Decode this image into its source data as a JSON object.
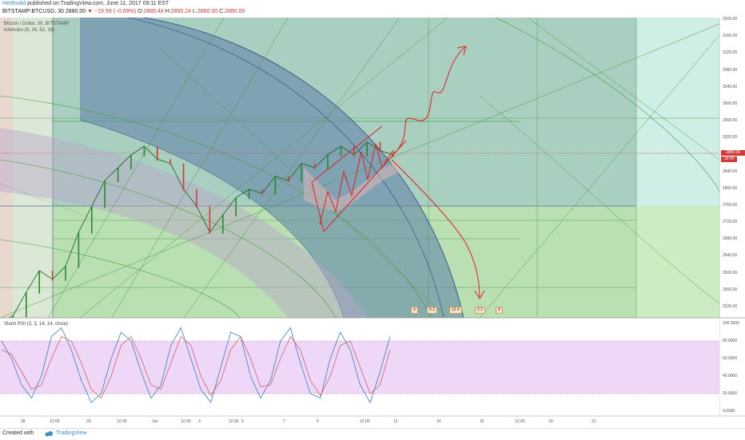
{
  "header": {
    "author": "Heithvald",
    "published_text": "published on TradingView.com, June 11, 2017 09:11 EST",
    "symbol": "BITSTAMP:BTCUSD, 30",
    "last": "2880.00",
    "change": "▼ −19.99 (−0.69%)",
    "open_label": "O:",
    "open": "2889.48",
    "high_label": "H:",
    "high": "2895.24",
    "low_label": "L:",
    "low": "2880.00",
    "close_label": "C:",
    "close": "2880.00"
  },
  "legend": {
    "series_title": "Bitcoin / Dollar, 30, BITSTAMP",
    "ichimoku": "Ichimoku (9, 26, 52, 26)",
    "stoch": "Stoch RSI (3, 3, 14, 14, close)"
  },
  "price_tag": {
    "value": "2880.00",
    "timer": "19:04"
  },
  "badges": [
    "4",
    "0 2",
    "12 4",
    "0 2",
    "4"
  ],
  "footer": {
    "created_with": "Created with",
    "brand": "TradingView"
  },
  "colors": {
    "up": "#2a8a2a",
    "down": "#d23a3a",
    "stoch_k": "#3a7cc0",
    "stoch_d": "#d06060",
    "stoch_band": "#e8c6f5",
    "fib_arc_fill": "#5d7fa8",
    "green_zone": "#b6e0b0",
    "arrow": "#e02020"
  },
  "chart_data": [
    {
      "type": "line",
      "name": "price",
      "title": "",
      "y_ticks": [
        "3200.00",
        "3160.00",
        "3120.00",
        "3080.00",
        "3040.00",
        "3000.00",
        "2960.00",
        "2920.00",
        "2880.00",
        "2840.00",
        "2800.00",
        "2760.00",
        "2720.00",
        "2680.00",
        "2640.00",
        "2600.00",
        "2560.00",
        "2520.00"
      ],
      "ylim": [
        2500,
        3200
      ],
      "x_ticks": [
        "28",
        "12:00",
        "29",
        "12:00",
        "Jun",
        "12:00",
        "3",
        "12:00",
        "5",
        "7",
        "9",
        "12:00",
        "12",
        "14",
        "16",
        "12:00",
        "19",
        "21"
      ],
      "series": [
        {
          "values": [
            2490,
            2505,
            2560,
            2610,
            2590,
            2620,
            2700,
            2760,
            2820,
            2850,
            2880,
            2900,
            2870,
            2860,
            2800,
            2760,
            2700,
            2740,
            2780,
            2800,
            2790,
            2830,
            2820,
            2860,
            2850,
            2880,
            2900,
            2880,
            2910,
            2890,
            2880
          ]
        }
      ]
    },
    {
      "type": "line",
      "name": "stoch_rsi",
      "title": "",
      "y_ticks": [
        "100.0000",
        "80.0000",
        "60.0000",
        "40.0000",
        "20.0000",
        "0.0000"
      ],
      "ylim": [
        0,
        100
      ],
      "band": [
        20,
        80
      ],
      "series": [
        {
          "values": [
            80,
            60,
            30,
            15,
            40,
            85,
            95,
            70,
            35,
            10,
            20,
            60,
            90,
            80,
            45,
            15,
            30,
            75,
            95,
            60,
            25,
            10,
            50,
            90,
            85,
            40,
            15,
            35,
            80,
            95,
            55,
            20,
            15,
            60,
            90,
            70,
            30,
            10,
            45,
            85
          ]
        },
        {
          "values": [
            70,
            65,
            45,
            25,
            30,
            60,
            85,
            80,
            55,
            25,
            15,
            40,
            75,
            85,
            60,
            30,
            25,
            55,
            85,
            75,
            40,
            18,
            35,
            70,
            85,
            60,
            28,
            30,
            60,
            85,
            70,
            35,
            18,
            40,
            75,
            80,
            50,
            20,
            30,
            70
          ]
        }
      ]
    }
  ]
}
